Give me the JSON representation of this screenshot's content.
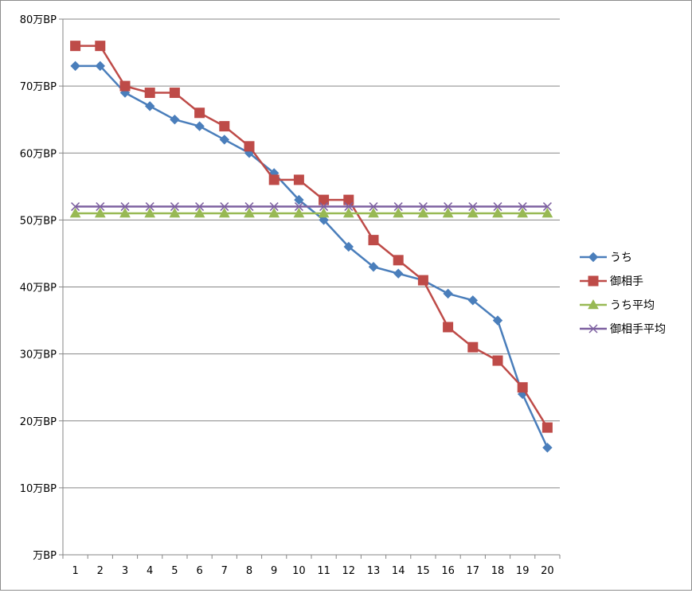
{
  "chart_data": {
    "type": "line",
    "title": "",
    "xlabel": "",
    "ylabel": "",
    "x": [
      1,
      2,
      3,
      4,
      5,
      6,
      7,
      8,
      9,
      10,
      11,
      12,
      13,
      14,
      15,
      16,
      17,
      18,
      19,
      20
    ],
    "x_tick_labels": [
      "1",
      "2",
      "3",
      "4",
      "5",
      "6",
      "7",
      "8",
      "9",
      "10",
      "11",
      "12",
      "13",
      "14",
      "15",
      "16",
      "17",
      "18",
      "19",
      "20"
    ],
    "ylim": [
      0,
      80
    ],
    "y_ticks": [
      0,
      10,
      20,
      30,
      40,
      50,
      60,
      70,
      80
    ],
    "y_tick_labels": [
      "万BP",
      "10万BP",
      "20万BP",
      "30万BP",
      "40万BP",
      "50万BP",
      "60万BP",
      "70万BP",
      "80万BP"
    ],
    "grid": "horizontal",
    "legend_position": "right",
    "series": [
      {
        "name": "うち",
        "color": "#4a7ebb",
        "marker": "diamond",
        "values": [
          73,
          73,
          69,
          67,
          65,
          64,
          62,
          60,
          57,
          53,
          50,
          46,
          43,
          42,
          41,
          39,
          38,
          35,
          24,
          16
        ]
      },
      {
        "name": "御相手",
        "color": "#be4b48",
        "marker": "square",
        "values": [
          76,
          76,
          70,
          69,
          69,
          66,
          64,
          61,
          56,
          56,
          53,
          53,
          47,
          44,
          41,
          34,
          31,
          29,
          25,
          19
        ]
      },
      {
        "name": "うち平均",
        "color": "#98b954",
        "marker": "triangle",
        "values": [
          51,
          51,
          51,
          51,
          51,
          51,
          51,
          51,
          51,
          51,
          51,
          51,
          51,
          51,
          51,
          51,
          51,
          51,
          51,
          51
        ]
      },
      {
        "name": "御相手平均",
        "color": "#7d60a0",
        "marker": "x",
        "values": [
          52,
          52,
          52,
          52,
          52,
          52,
          52,
          52,
          52,
          52,
          52,
          52,
          52,
          52,
          52,
          52,
          52,
          52,
          52,
          52
        ]
      }
    ]
  }
}
